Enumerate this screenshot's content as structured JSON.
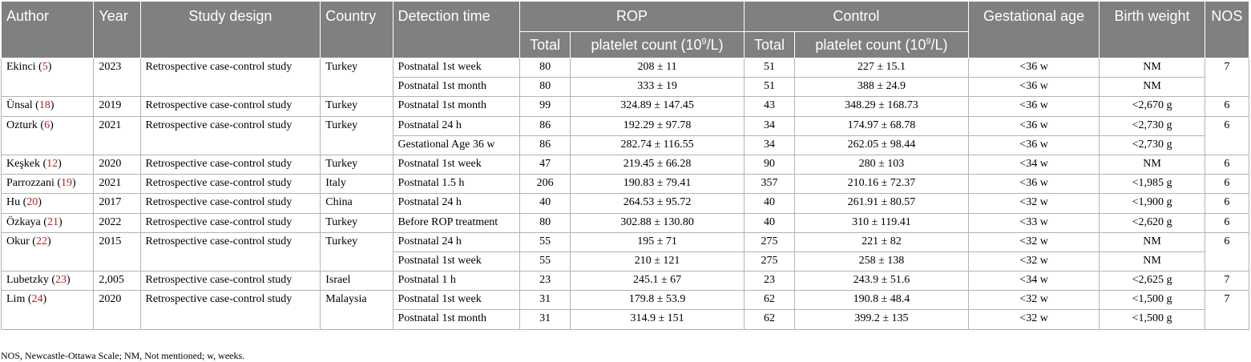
{
  "headers": {
    "author": "Author",
    "year": "Year",
    "design": "Study design",
    "country": "Country",
    "detection": "Detection time",
    "rop": "ROP",
    "control": "Control",
    "gestational": "Gestational age",
    "birthweight": "Birth weight",
    "nos": "NOS",
    "total": "Total",
    "platelet_prefix": "platelet count (10",
    "platelet_exp": "9",
    "platelet_suffix": "/L)"
  },
  "rows": [
    {
      "author": "Ekinci",
      "ref": "5",
      "year": "2023",
      "design": "Retrospective case-control study",
      "country": "Turkey",
      "nos": "7",
      "times": [
        {
          "detection": "Postnatal 1st week",
          "rop_total": "80",
          "rop_pc": "208 ± 11",
          "ctrl_total": "51",
          "ctrl_pc": "227 ± 15.1",
          "ga": "<36 w",
          "bw": "NM"
        },
        {
          "detection": "Postnatal 1st month",
          "rop_total": "80",
          "rop_pc": "333 ± 19",
          "ctrl_total": "51",
          "ctrl_pc": "388 ± 24.9",
          "ga": "<36 w",
          "bw": "NM"
        }
      ]
    },
    {
      "author": "Ünsal",
      "ref": "18",
      "year": "2019",
      "design": "Retrospective case-control study",
      "country": "Turkey",
      "nos": "6",
      "times": [
        {
          "detection": "Postnatal 1st month",
          "rop_total": "99",
          "rop_pc": "324.89 ± 147.45",
          "ctrl_total": "43",
          "ctrl_pc": "348.29 ± 168.73",
          "ga": "<36 w",
          "bw": "<2,670 g"
        }
      ]
    },
    {
      "author": "Ozturk",
      "ref": "6",
      "year": "2021",
      "design": "Retrospective case-control study",
      "country": "Turkey",
      "nos": "6",
      "times": [
        {
          "detection": "Postnatal 24 h",
          "rop_total": "86",
          "rop_pc": "192.29 ± 97.78",
          "ctrl_total": "34",
          "ctrl_pc": "174.97 ± 68.78",
          "ga": "<36 w",
          "bw": "<2,730 g"
        },
        {
          "detection": "Gestational Age 36 w",
          "rop_total": "86",
          "rop_pc": "282.74 ± 116.55",
          "ctrl_total": "34",
          "ctrl_pc": "262.05 ± 98.44",
          "ga": "<36 w",
          "bw": "<2,730 g"
        }
      ]
    },
    {
      "author": "Keşkek",
      "ref": "12",
      "year": "2020",
      "design": "Retrospective case-control study",
      "country": "Turkey",
      "nos": "6",
      "times": [
        {
          "detection": "Postnatal 1st week",
          "rop_total": "47",
          "rop_pc": "219.45 ± 66.28",
          "ctrl_total": "90",
          "ctrl_pc": "280 ± 103",
          "ga": "<34 w",
          "bw": "NM"
        }
      ]
    },
    {
      "author": "Parrozzani",
      "ref": "19",
      "year": "2021",
      "design": "Retrospective case-control study",
      "country": "Italy",
      "nos": "6",
      "times": [
        {
          "detection": "Postnatal 1.5 h",
          "rop_total": "206",
          "rop_pc": "190.83 ± 79.41",
          "ctrl_total": "357",
          "ctrl_pc": "210.16 ± 72.37",
          "ga": "<36 w",
          "bw": "<1,985 g"
        }
      ]
    },
    {
      "author": "Hu",
      "ref": "20",
      "year": "2017",
      "design": "Retrospective case-control study",
      "country": "China",
      "nos": "6",
      "times": [
        {
          "detection": "Postnatal 24 h",
          "rop_total": "40",
          "rop_pc": "264.53 ± 95.72",
          "ctrl_total": "40",
          "ctrl_pc": "261.91 ± 80.57",
          "ga": "<32 w",
          "bw": "<1,900 g"
        }
      ]
    },
    {
      "author": "Özkaya",
      "ref": "21",
      "year": "2022",
      "design": "Retrospective case-control study",
      "country": "Turkey",
      "nos": "6",
      "times": [
        {
          "detection": "Before ROP treatment",
          "rop_total": "80",
          "rop_pc": "302.88 ± 130.80",
          "ctrl_total": "40",
          "ctrl_pc": "310 ± 119.41",
          "ga": "<33 w",
          "bw": "<2,620 g"
        }
      ]
    },
    {
      "author": "Okur",
      "ref": "22",
      "year": "2015",
      "design": "Retrospective case-control study",
      "country": "Turkey",
      "nos": "6",
      "times": [
        {
          "detection": "Postnatal 24 h",
          "rop_total": "55",
          "rop_pc": "195 ± 71",
          "ctrl_total": "275",
          "ctrl_pc": "221 ± 82",
          "ga": "<32 w",
          "bw": "NM"
        },
        {
          "detection": "Postnatal 1st week",
          "rop_total": "55",
          "rop_pc": "210 ± 121",
          "ctrl_total": "275",
          "ctrl_pc": "258 ± 138",
          "ga": "<32 w",
          "bw": "NM"
        }
      ]
    },
    {
      "author": "Lubetzky",
      "ref": "23",
      "year": "2,005",
      "design": "Retrospective case-control study",
      "country": "Israel",
      "nos": "7",
      "times": [
        {
          "detection": "Postnatal 1 h",
          "rop_total": "23",
          "rop_pc": "245.1 ± 67",
          "ctrl_total": "23",
          "ctrl_pc": "243.9 ± 51.6",
          "ga": "<34 w",
          "bw": "<2,625 g"
        }
      ]
    },
    {
      "author": "Lim",
      "ref": "24",
      "year": "2020",
      "design": "Retrospective case-control study",
      "country": "Malaysia",
      "nos": "7",
      "times": [
        {
          "detection": "Postnatal 1st week",
          "rop_total": "31",
          "rop_pc": "179.8 ± 53.9",
          "ctrl_total": "62",
          "ctrl_pc": "190.8 ± 48.4",
          "ga": "<32 w",
          "bw": "<1,500 g"
        },
        {
          "detection": "Postnatal 1st month",
          "rop_total": "31",
          "rop_pc": "314.9 ± 151",
          "ctrl_total": "62",
          "ctrl_pc": "399.2 ± 135",
          "ga": "<32 w",
          "bw": "<1,500 g"
        }
      ]
    }
  ],
  "footnote": "NOS, Newcastle-Ottawa Scale; NM, Not mentioned; w, weeks."
}
